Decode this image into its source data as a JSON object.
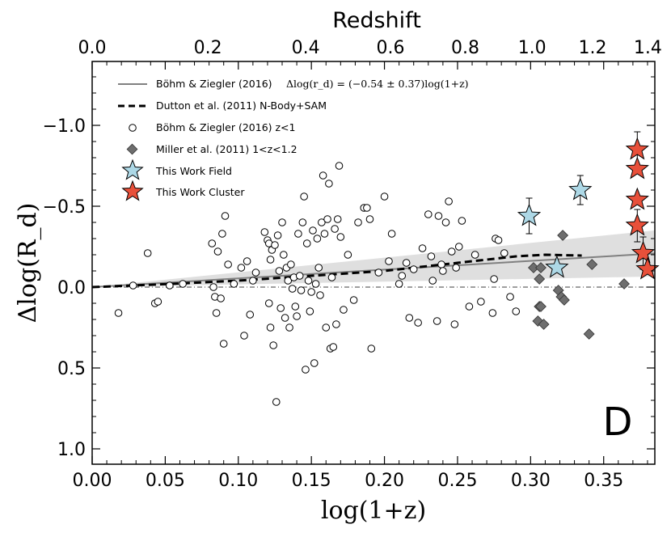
{
  "chart_data": {
    "type": "scatter",
    "panel_label": "D",
    "xlabel": "log(1+z)",
    "ylabel": "Δlog(R_d)",
    "top_xlabel": "Redshift",
    "xlim": [
      0.0,
      0.385
    ],
    "ylim": [
      1.1,
      -1.4
    ],
    "y_inverted": true,
    "x_ticks": [
      "0.00",
      "0.05",
      "0.10",
      "0.15",
      "0.20",
      "0.25",
      "0.30",
      "0.35"
    ],
    "y_ticks": [
      "1.0",
      "0.5",
      "0.0",
      "−0.5",
      "−1.0"
    ],
    "top_ticks": [
      "0.0",
      "0.2",
      "0.4",
      "0.6",
      "0.8",
      "1.0",
      "1.2",
      "1.4"
    ],
    "legend": [
      {
        "label": "Böhm & Ziegler (2016)",
        "formula": "Δlog(r_d) = (−0.54 ± 0.37)log(1+z)",
        "marker": "line-gray"
      },
      {
        "label": "Dutton et al. (2011) N-Body+SAM",
        "marker": "line-dashed"
      },
      {
        "label": "Böhm & Ziegler (2016) z<1",
        "marker": "circle"
      },
      {
        "label": "Miller et al. (2011) 1<z<1.2",
        "marker": "diamond"
      },
      {
        "label": "This Work Field",
        "marker": "star-blue"
      },
      {
        "label": "This Work Cluster",
        "marker": "star-red"
      }
    ],
    "colors": {
      "gray_line": "#808080",
      "band": "#d9d9d9",
      "circle_face": "#ffffff",
      "diamond": "#6e6e6e",
      "star_field": "#add8e6",
      "star_cluster": "#e8503a"
    },
    "fit_line": {
      "slope": -0.54,
      "slope_err": 0.37,
      "x_range": [
        0.0,
        0.385
      ]
    },
    "dutton_curve": {
      "x": [
        0.0,
        0.05,
        0.1,
        0.15,
        0.2,
        0.25,
        0.29,
        0.31,
        0.335
      ],
      "y": [
        0.0,
        -0.018,
        -0.04,
        -0.07,
        -0.1,
        -0.15,
        -0.19,
        -0.2,
        -0.195
      ]
    },
    "series": [
      {
        "name": "Böhm & Ziegler (2016) z<1",
        "marker": "circle",
        "points": [
          [
            0.018,
            0.16
          ],
          [
            0.028,
            -0.01
          ],
          [
            0.038,
            -0.21
          ],
          [
            0.043,
            0.1
          ],
          [
            0.045,
            0.09
          ],
          [
            0.053,
            -0.01
          ],
          [
            0.062,
            -0.02
          ],
          [
            0.082,
            -0.27
          ],
          [
            0.083,
            0.0
          ],
          [
            0.084,
            0.06
          ],
          [
            0.085,
            0.16
          ],
          [
            0.086,
            -0.22
          ],
          [
            0.088,
            0.07
          ],
          [
            0.089,
            -0.33
          ],
          [
            0.09,
            0.35
          ],
          [
            0.091,
            -0.44
          ],
          [
            0.093,
            -0.14
          ],
          [
            0.097,
            -0.02
          ],
          [
            0.102,
            -0.12
          ],
          [
            0.104,
            0.3
          ],
          [
            0.106,
            -0.16
          ],
          [
            0.108,
            0.17
          ],
          [
            0.11,
            -0.04
          ],
          [
            0.112,
            -0.09
          ],
          [
            0.118,
            -0.34
          ],
          [
            0.12,
            -0.29
          ],
          [
            0.121,
            -0.27
          ],
          [
            0.121,
            0.1
          ],
          [
            0.122,
            -0.17
          ],
          [
            0.122,
            0.25
          ],
          [
            0.123,
            -0.23
          ],
          [
            0.124,
            0.36
          ],
          [
            0.125,
            -0.26
          ],
          [
            0.126,
            0.71
          ],
          [
            0.127,
            -0.32
          ],
          [
            0.128,
            -0.1
          ],
          [
            0.129,
            0.13
          ],
          [
            0.13,
            -0.4
          ],
          [
            0.131,
            -0.2
          ],
          [
            0.132,
            0.19
          ],
          [
            0.133,
            -0.12
          ],
          [
            0.134,
            -0.04
          ],
          [
            0.135,
            0.25
          ],
          [
            0.136,
            -0.14
          ],
          [
            0.137,
            0.01
          ],
          [
            0.138,
            -0.06
          ],
          [
            0.139,
            0.12
          ],
          [
            0.14,
            0.18
          ],
          [
            0.141,
            -0.33
          ],
          [
            0.142,
            -0.07
          ],
          [
            0.143,
            0.02
          ],
          [
            0.144,
            -0.4
          ],
          [
            0.145,
            -0.56
          ],
          [
            0.146,
            0.51
          ],
          [
            0.147,
            -0.27
          ],
          [
            0.148,
            -0.04
          ],
          [
            0.149,
            0.15
          ],
          [
            0.15,
            0.03
          ],
          [
            0.151,
            -0.35
          ],
          [
            0.152,
            0.47
          ],
          [
            0.153,
            -0.02
          ],
          [
            0.154,
            -0.3
          ],
          [
            0.155,
            -0.12
          ],
          [
            0.156,
            0.05
          ],
          [
            0.157,
            -0.4
          ],
          [
            0.158,
            -0.69
          ],
          [
            0.159,
            -0.33
          ],
          [
            0.16,
            0.25
          ],
          [
            0.161,
            -0.42
          ],
          [
            0.162,
            -0.64
          ],
          [
            0.163,
            0.38
          ],
          [
            0.164,
            -0.06
          ],
          [
            0.165,
            0.37
          ],
          [
            0.166,
            -0.36
          ],
          [
            0.167,
            0.23
          ],
          [
            0.168,
            -0.42
          ],
          [
            0.169,
            -0.75
          ],
          [
            0.17,
            -0.31
          ],
          [
            0.172,
            0.14
          ],
          [
            0.175,
            -0.2
          ],
          [
            0.179,
            0.08
          ],
          [
            0.182,
            -0.4
          ],
          [
            0.186,
            -0.49
          ],
          [
            0.188,
            -0.49
          ],
          [
            0.19,
            -0.42
          ],
          [
            0.191,
            0.38
          ],
          [
            0.196,
            -0.09
          ],
          [
            0.2,
            -0.56
          ],
          [
            0.203,
            -0.16
          ],
          [
            0.205,
            -0.33
          ],
          [
            0.21,
            -0.02
          ],
          [
            0.212,
            -0.07
          ],
          [
            0.215,
            -0.15
          ],
          [
            0.217,
            0.19
          ],
          [
            0.22,
            -0.11
          ],
          [
            0.223,
            0.22
          ],
          [
            0.226,
            -0.24
          ],
          [
            0.23,
            -0.45
          ],
          [
            0.232,
            -0.19
          ],
          [
            0.233,
            -0.04
          ],
          [
            0.236,
            0.21
          ],
          [
            0.237,
            -0.44
          ],
          [
            0.239,
            -0.14
          ],
          [
            0.24,
            -0.1
          ],
          [
            0.242,
            -0.4
          ],
          [
            0.244,
            -0.53
          ],
          [
            0.246,
            -0.22
          ],
          [
            0.248,
            0.23
          ],
          [
            0.249,
            -0.12
          ],
          [
            0.251,
            -0.25
          ],
          [
            0.253,
            -0.41
          ],
          [
            0.258,
            0.12
          ],
          [
            0.262,
            -0.2
          ],
          [
            0.266,
            0.09
          ],
          [
            0.274,
            0.16
          ],
          [
            0.275,
            -0.05
          ],
          [
            0.276,
            -0.3
          ],
          [
            0.278,
            -0.29
          ],
          [
            0.282,
            -0.21
          ],
          [
            0.286,
            0.06
          ],
          [
            0.29,
            0.15
          ]
        ]
      },
      {
        "name": "Miller et al. (2011) 1<z<1.2",
        "marker": "diamond",
        "points": [
          [
            0.302,
            -0.12
          ],
          [
            0.305,
            0.21
          ],
          [
            0.306,
            0.12
          ],
          [
            0.306,
            -0.05
          ],
          [
            0.307,
            0.12
          ],
          [
            0.307,
            -0.12
          ],
          [
            0.309,
            0.23
          ],
          [
            0.319,
            0.02
          ],
          [
            0.321,
            0.06
          ],
          [
            0.322,
            -0.32
          ],
          [
            0.323,
            0.08
          ],
          [
            0.34,
            0.29
          ],
          [
            0.342,
            -0.14
          ],
          [
            0.364,
            -0.02
          ]
        ]
      },
      {
        "name": "This Work Field",
        "marker": "star",
        "points": [
          {
            "x": 0.299,
            "y": -0.44,
            "err": 0.11
          },
          {
            "x": 0.318,
            "y": -0.12,
            "err": 0.0
          },
          {
            "x": 0.334,
            "y": -0.6,
            "err": 0.09
          }
        ]
      },
      {
        "name": "This Work Cluster",
        "marker": "star",
        "points": [
          {
            "x": 0.373,
            "y": -0.85,
            "err": 0.11
          },
          {
            "x": 0.373,
            "y": -0.73,
            "err": 0.0
          },
          {
            "x": 0.373,
            "y": -0.54,
            "err": 0.0
          },
          {
            "x": 0.373,
            "y": -0.38,
            "err": 0.1
          },
          {
            "x": 0.377,
            "y": -0.21,
            "err": 0.1
          },
          {
            "x": 0.38,
            "y": -0.11,
            "err": 0.0
          }
        ]
      }
    ]
  }
}
